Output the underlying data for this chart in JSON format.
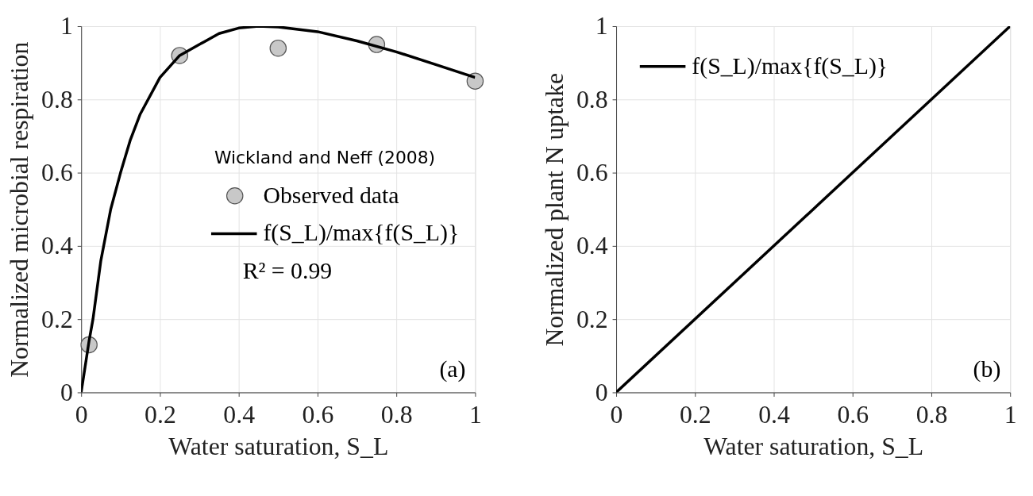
{
  "chart_data": [
    {
      "type": "scatter",
      "xlabel": "Water saturation, S_L",
      "ylabel": "Normalized microbial respiration",
      "xlim": [
        0,
        1
      ],
      "ylim": [
        0,
        1
      ],
      "xticks": [
        0,
        0.2,
        0.4,
        0.6,
        0.8,
        1
      ],
      "yticks": [
        0,
        0.2,
        0.4,
        0.6,
        0.8,
        1
      ],
      "grid": true,
      "legend": "right",
      "legend_title": "Wickland and Neff (2008)",
      "series": [
        {
          "name": "Observed data",
          "marker": "circle",
          "color": "#c8c8c8",
          "x": [
            0.02,
            0.25,
            0.5,
            0.75,
            1.0
          ],
          "values": [
            0.13,
            0.92,
            0.94,
            0.95,
            0.85
          ]
        },
        {
          "name": "f(S_L)/max{f(S_L)}",
          "type": "line",
          "color": "#000000",
          "x": [
            0,
            0.01,
            0.02,
            0.03,
            0.05,
            0.075,
            0.1,
            0.125,
            0.15,
            0.2,
            0.25,
            0.3,
            0.35,
            0.4,
            0.45,
            0.5,
            0.6,
            0.7,
            0.8,
            0.9,
            1
          ],
          "values": [
            0,
            0.07,
            0.14,
            0.2,
            0.36,
            0.5,
            0.6,
            0.69,
            0.76,
            0.86,
            0.92,
            0.95,
            0.98,
            0.995,
            1.0,
            0.998,
            0.985,
            0.96,
            0.93,
            0.895,
            0.86
          ]
        }
      ],
      "annotations": [
        "R² = 0.99",
        "(a)"
      ]
    },
    {
      "type": "line",
      "xlabel": "Water saturation, S_L",
      "ylabel": "Normalized plant N uptake",
      "xlim": [
        0,
        1
      ],
      "ylim": [
        0,
        1
      ],
      "xticks": [
        0,
        0.2,
        0.4,
        0.6,
        0.8,
        1
      ],
      "yticks": [
        0,
        0.2,
        0.4,
        0.6,
        0.8,
        1
      ],
      "grid": true,
      "legend": "top left",
      "series": [
        {
          "name": "f(S_L)/max{f(S_L)}",
          "color": "#000000",
          "x": [
            0,
            1
          ],
          "values": [
            0,
            1
          ]
        }
      ],
      "annotations": [
        "(b)"
      ]
    }
  ]
}
